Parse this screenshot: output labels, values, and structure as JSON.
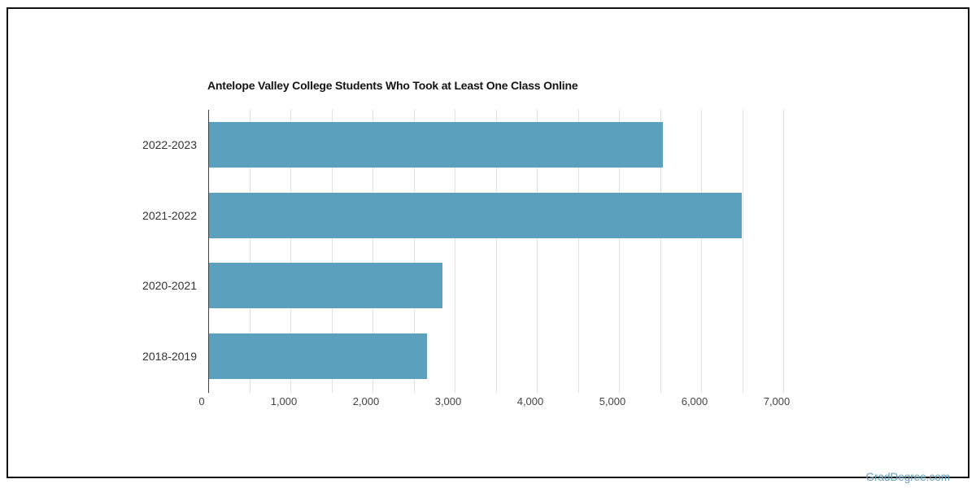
{
  "page": {
    "watermark": "GradDegree.com"
  },
  "chart_data": {
    "type": "bar",
    "orientation": "horizontal",
    "title": "Antelope Valley College Students Who Took at Least One Class Online",
    "categories": [
      "2022-2023",
      "2021-2022",
      "2020-2021",
      "2018-2019"
    ],
    "values": [
      5520,
      6480,
      2840,
      2650
    ],
    "xlabel": "",
    "ylabel": "",
    "xlim": [
      0,
      7000
    ],
    "x_major_ticks": [
      0,
      1000,
      2000,
      3000,
      4000,
      5000,
      6000,
      7000
    ],
    "x_tick_labels": [
      "0",
      "1,000",
      "2,000",
      "3,000",
      "4,000",
      "5,000",
      "6,000",
      "7,000"
    ],
    "gridline_interval": 500,
    "grid": true,
    "legend": false,
    "colors": {
      "bar": "#5ba1bd",
      "axis_line": "#424242",
      "gridline": "#e2e2e2",
      "title": "#141414",
      "category_label": "#333333",
      "tick_label": "#444444",
      "watermark": "#5f9fbe"
    }
  }
}
